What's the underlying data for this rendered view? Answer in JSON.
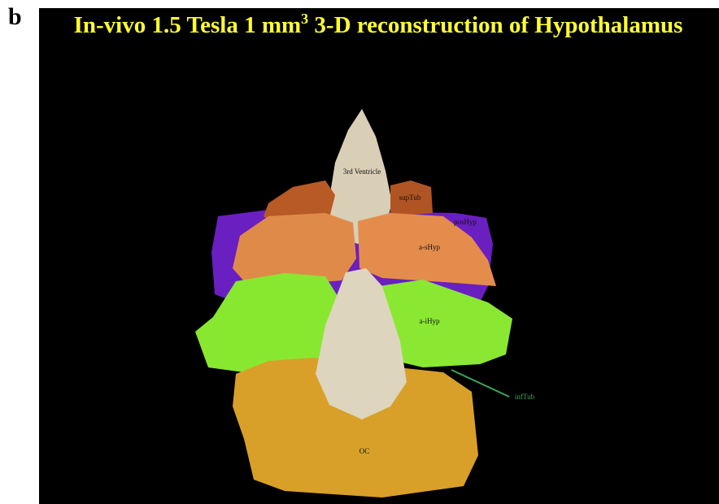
{
  "panel_label": "b",
  "title": {
    "main": "In-vivo 1.5 Tesla 1 mm",
    "superscript": "3",
    "rest": " 3-D reconstruction of Hypothalamus"
  },
  "labels": {
    "third_ventricle": "3rd Ventricle",
    "sup_tub": "supTub",
    "pos_hyp": "posHyp",
    "a_s_hyp": "a-sHyp",
    "a_i_hyp": "a-iHyp",
    "inf_tub": "infTub",
    "oc": "OC"
  }
}
